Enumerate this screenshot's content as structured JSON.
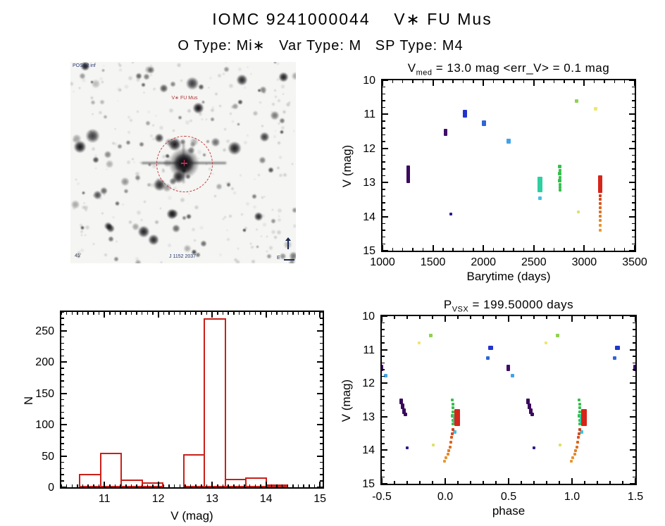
{
  "header": {
    "title": "IOMC 9241000044    V∗ FU Mus",
    "subtitle": "O Type: Mi∗   Var Type: M   SP Type: M4"
  },
  "finder": {
    "survey": "POSS2 inf",
    "target_label": "V∗ FU Mus",
    "bottom_left": "45'",
    "bottom_center": "J 1152 2037",
    "compass_east": "E"
  },
  "chart_data": [
    {
      "id": "lightcurve",
      "type": "scatter",
      "title": {
        "pre": "V",
        "sub": "med",
        "post": " = 13.0 mag <err_V> = 0.1 mag"
      },
      "xlabel": "Barytime (days)",
      "ylabel": "V (mag)",
      "xlim": [
        1000,
        3500
      ],
      "ylim": [
        10,
        15
      ],
      "xticks": [
        {
          "v": 1000,
          "label": "1000"
        },
        {
          "v": 1500,
          "label": "1500"
        },
        {
          "v": 2000,
          "label": "2000"
        },
        {
          "v": 2500,
          "label": "2500"
        },
        {
          "v": 3000,
          "label": "3000"
        },
        {
          "v": 3500,
          "label": "3500"
        }
      ],
      "yticks": [
        {
          "v": 10,
          "label": "10"
        },
        {
          "v": 11,
          "label": "11"
        },
        {
          "v": 12,
          "label": "12"
        },
        {
          "v": 13,
          "label": "13"
        },
        {
          "v": 14,
          "label": "14"
        },
        {
          "v": 15,
          "label": "15"
        }
      ],
      "xminor": 100,
      "yminor": 0.2,
      "repeat": [
        0
      ],
      "points": [
        {
          "x": 1255,
          "y": 12.5,
          "y2": 13.02,
          "w": 5,
          "c": "#3a0a5c"
        },
        {
          "x": 1626,
          "y": 11.42,
          "y2": 11.63,
          "w": 5,
          "c": "#400e66"
        },
        {
          "x": 1677,
          "y": 13.93,
          "w": 4,
          "c": "#2c1b8c"
        },
        {
          "x": 1815,
          "y": 10.86,
          "y2": 11.1,
          "w": 6,
          "c": "#2135cd"
        },
        {
          "x": 2006,
          "y": 11.18,
          "y2": 11.35,
          "w": 6,
          "c": "#2e66d8"
        },
        {
          "x": 2247,
          "y": 11.72,
          "y2": 11.86,
          "w": 6,
          "c": "#41a3e8"
        },
        {
          "x": 2560,
          "y": 12.84,
          "y2": 13.28,
          "w": 7,
          "c": "#2ecfa0"
        },
        {
          "x": 2560,
          "y": 13.47,
          "w": 5,
          "c": "#3ec3e0"
        },
        {
          "x": 2757,
          "y": 12.54,
          "w": 5,
          "c": "#37bf4e"
        },
        {
          "x": 2760,
          "y": 12.64,
          "w": 4,
          "c": "#37bf4e"
        },
        {
          "x": 2756,
          "y": 12.74,
          "w": 5,
          "c": "#37bf4e"
        },
        {
          "x": 2759,
          "y": 12.85,
          "w": 4,
          "c": "#37bf4e"
        },
        {
          "x": 2757,
          "y": 12.95,
          "w": 5,
          "c": "#37bf4e"
        },
        {
          "x": 2758,
          "y": 13.06,
          "w": 4,
          "c": "#37bf4e"
        },
        {
          "x": 2757,
          "y": 13.15,
          "w": 4,
          "c": "#37bf4e"
        },
        {
          "x": 2759,
          "y": 13.22,
          "w": 4,
          "c": "#37bf4e"
        },
        {
          "x": 2927,
          "y": 10.6,
          "w": 5,
          "c": "#8ed34f"
        },
        {
          "x": 3111,
          "y": 10.83,
          "w": 5,
          "c": "#ece86e"
        },
        {
          "x": 2943,
          "y": 13.86,
          "w": 4,
          "c": "#dfe06a"
        },
        {
          "x": 3160,
          "y": 12.78,
          "y2": 13.31,
          "w": 6,
          "c": "#d6251a"
        },
        {
          "x": 3159,
          "y": 13.38,
          "w": 4,
          "c": "#d63c1a"
        },
        {
          "x": 3161,
          "y": 13.5,
          "w": 4,
          "c": "#d6481c"
        },
        {
          "x": 3158,
          "y": 13.62,
          "w": 4,
          "c": "#d8551e"
        },
        {
          "x": 3160,
          "y": 13.74,
          "w": 4,
          "c": "#dc6420"
        },
        {
          "x": 3159,
          "y": 13.86,
          "w": 4,
          "c": "#de7224"
        },
        {
          "x": 3161,
          "y": 13.98,
          "w": 4,
          "c": "#e07e26"
        },
        {
          "x": 3158,
          "y": 14.12,
          "w": 4,
          "c": "#e48a2a"
        },
        {
          "x": 3160,
          "y": 14.26,
          "w": 4,
          "c": "#e6922d"
        },
        {
          "x": 3159,
          "y": 14.4,
          "w": 4,
          "c": "#e89a30"
        }
      ]
    },
    {
      "id": "histogram",
      "type": "bar",
      "title": null,
      "xlabel": "V (mag)",
      "ylabel": "N",
      "xlim": [
        10.2,
        15.05
      ],
      "ylim": [
        280,
        0
      ],
      "xticks": [
        {
          "v": 11,
          "label": "11"
        },
        {
          "v": 12,
          "label": "12"
        },
        {
          "v": 13,
          "label": "13"
        },
        {
          "v": 14,
          "label": "14"
        },
        {
          "v": 15,
          "label": "15"
        }
      ],
      "yticks": [
        {
          "v": 0,
          "label": "0"
        },
        {
          "v": 50,
          "label": "50"
        },
        {
          "v": 100,
          "label": "100"
        },
        {
          "v": 150,
          "label": "150"
        },
        {
          "v": 200,
          "label": "200"
        },
        {
          "v": 250,
          "label": "250"
        }
      ],
      "xminor": 0.1,
      "yminor": 10,
      "bar_color": "#c9201a",
      "bins": [
        {
          "x0": 10.54,
          "x1": 10.93,
          "n": 21
        },
        {
          "x0": 10.93,
          "x1": 11.31,
          "n": 55
        },
        {
          "x0": 11.31,
          "x1": 11.7,
          "n": 12
        },
        {
          "x0": 11.7,
          "x1": 12.08,
          "n": 8
        },
        {
          "x0": 12.08,
          "x1": 12.47,
          "n": 0
        },
        {
          "x0": 12.47,
          "x1": 12.85,
          "n": 53
        },
        {
          "x0": 12.85,
          "x1": 13.24,
          "n": 270
        },
        {
          "x0": 13.24,
          "x1": 13.62,
          "n": 14
        },
        {
          "x0": 13.62,
          "x1": 14.01,
          "n": 16
        },
        {
          "x0": 14.01,
          "x1": 14.39,
          "n": 5
        }
      ]
    },
    {
      "id": "phase",
      "type": "scatter",
      "title": {
        "pre": "P",
        "sub": "VSX",
        "post": " = 199.50000 days"
      },
      "xlabel": "phase",
      "ylabel": "V (mag)",
      "xlim": [
        -0.5,
        1.5
      ],
      "ylim": [
        10,
        15
      ],
      "xticks": [
        {
          "v": -0.5,
          "label": "-0.5"
        },
        {
          "v": 0.0,
          "label": "0.0"
        },
        {
          "v": 0.5,
          "label": "0.5"
        },
        {
          "v": 1.0,
          "label": "1.0"
        },
        {
          "v": 1.5,
          "label": "1.5"
        }
      ],
      "yticks": [
        {
          "v": 10,
          "label": "10"
        },
        {
          "v": 11,
          "label": "11"
        },
        {
          "v": 12,
          "label": "12"
        },
        {
          "v": 13,
          "label": "13"
        },
        {
          "v": 14,
          "label": "14"
        },
        {
          "v": 15,
          "label": "15"
        }
      ],
      "xminor": 0.1,
      "yminor": 0.2,
      "repeat": [
        -1,
        0,
        1
      ],
      "points": [
        {
          "x": -0.345,
          "y": 12.46,
          "y2": 12.62,
          "w": 5,
          "c": "#3a0a5c"
        },
        {
          "x": -0.335,
          "y": 12.6,
          "y2": 12.78,
          "w": 5,
          "c": "#3a0a5c"
        },
        {
          "x": -0.325,
          "y": 12.76,
          "y2": 12.92,
          "w": 5,
          "c": "#3a0a5c"
        },
        {
          "x": -0.316,
          "y": 12.88,
          "y2": 12.98,
          "w": 5,
          "c": "#3a0a5c"
        },
        {
          "x": -0.298,
          "y": 13.93,
          "w": 4,
          "c": "#2c1b8c"
        },
        {
          "x": 0.498,
          "y": 11.45,
          "y2": 11.63,
          "w": 5,
          "c": "#400e66"
        },
        {
          "x": -0.47,
          "y": 11.77,
          "w": 5,
          "c": "#41a3e8"
        },
        {
          "x": 0.36,
          "y": 10.88,
          "y2": 11.0,
          "w": 7,
          "c": "#2135cd"
        },
        {
          "x": 0.335,
          "y": 11.2,
          "y2": 11.3,
          "w": 5,
          "c": "#2e66d8"
        },
        {
          "x": -0.115,
          "y": 10.58,
          "w": 5,
          "c": "#8ed34f"
        },
        {
          "x": -0.207,
          "y": 10.8,
          "w": 4,
          "c": "#ece86e"
        },
        {
          "x": -0.093,
          "y": 13.84,
          "w": 4,
          "c": "#dfe06a"
        },
        {
          "x": 0.058,
          "y": 12.5,
          "w": 4,
          "c": "#37bf4e"
        },
        {
          "x": 0.061,
          "y": 12.62,
          "w": 4,
          "c": "#37bf4e"
        },
        {
          "x": 0.059,
          "y": 12.74,
          "w": 4,
          "c": "#37bf4e"
        },
        {
          "x": 0.062,
          "y": 12.86,
          "w": 4,
          "c": "#37bf4e"
        },
        {
          "x": 0.058,
          "y": 12.98,
          "w": 5,
          "c": "#37bf4e"
        },
        {
          "x": 0.06,
          "y": 13.1,
          "w": 4,
          "c": "#37bf4e"
        },
        {
          "x": 0.059,
          "y": 13.22,
          "w": 4,
          "c": "#37bf4e"
        },
        {
          "x": 0.073,
          "y": 12.92,
          "y2": 13.2,
          "w": 4,
          "c": "#2ecfa0"
        },
        {
          "x": 0.077,
          "y": 13.46,
          "w": 5,
          "c": "#3ec3e0"
        },
        {
          "x": 0.096,
          "y": 12.78,
          "y2": 13.28,
          "w": 8,
          "c": "#d6251a"
        },
        {
          "x": 0.063,
          "y": 13.38,
          "w": 4,
          "c": "#d63c1a"
        },
        {
          "x": 0.058,
          "y": 13.5,
          "w": 4,
          "c": "#d6481c"
        },
        {
          "x": 0.052,
          "y": 13.62,
          "w": 4,
          "c": "#d8551e"
        },
        {
          "x": 0.047,
          "y": 13.76,
          "w": 4,
          "c": "#dc6420"
        },
        {
          "x": 0.04,
          "y": 13.9,
          "w": 4,
          "c": "#de7224"
        },
        {
          "x": 0.03,
          "y": 14.02,
          "w": 4,
          "c": "#e07e26"
        },
        {
          "x": 0.02,
          "y": 14.12,
          "w": 4,
          "c": "#e48a2a"
        },
        {
          "x": 0.008,
          "y": 14.22,
          "w": 4,
          "c": "#e6922d"
        },
        {
          "x": -0.005,
          "y": 14.32,
          "w": 4,
          "c": "#e89a30"
        }
      ]
    }
  ]
}
